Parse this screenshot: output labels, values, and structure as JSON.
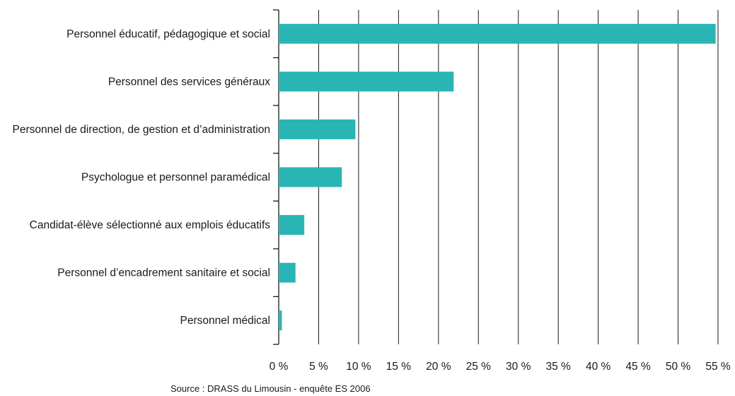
{
  "chart_data": {
    "type": "bar",
    "orientation": "horizontal",
    "categories": [
      "Personnel éducatif, pédagogique et social",
      "Personnel des services généraux",
      "Personnel de direction, de gestion et d’administration",
      "Psychologue et personnel paramédical",
      "Candidat-élève sélectionné aux emplois éducatifs",
      "Personnel d’encadrement sanitaire et social",
      "Personnel médical"
    ],
    "values": [
      54.7,
      21.9,
      9.6,
      7.9,
      3.2,
      2.1,
      0.4
    ],
    "x_ticks": [
      "0 %",
      "5 %",
      "10 %",
      "15 %",
      "20 %",
      "25 %",
      "30 %",
      "35 %",
      "40 %",
      "45 %",
      "50 %",
      "55 %"
    ],
    "xlim": [
      0,
      55
    ],
    "grid": "vertical",
    "bar_color": "#2ab5b5",
    "title": "",
    "xlabel": "",
    "ylabel": "",
    "source": "Source : DRASS du Limousin - enquête ES 2006"
  }
}
